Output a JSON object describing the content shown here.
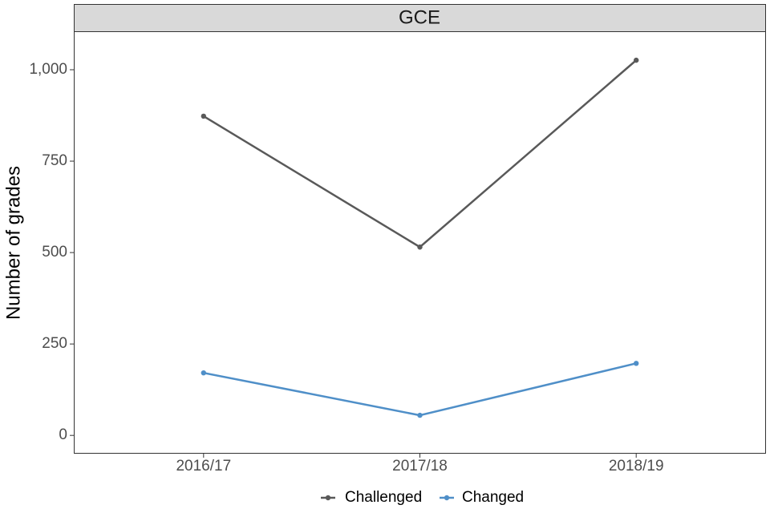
{
  "chart_data": {
    "type": "line",
    "title": "GCE",
    "y_label": "Number of grades",
    "categories": [
      "2016/17",
      "2017/18",
      "2018/19"
    ],
    "series": [
      {
        "name": "Challenged",
        "color": "#595959",
        "values": [
          873,
          515,
          1026
        ]
      },
      {
        "name": "Changed",
        "color": "#4f8fc8",
        "values": [
          171,
          55,
          197
        ]
      }
    ],
    "ylim": [
      -50,
      1103
    ],
    "yticks": [
      0,
      250,
      500,
      750,
      {
        "value": 1000,
        "label": "1,000"
      }
    ],
    "grid": false,
    "legend": "bottom"
  }
}
